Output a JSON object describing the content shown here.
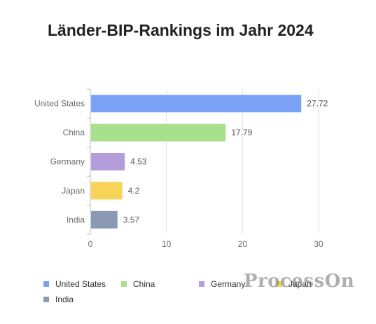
{
  "title": "Länder-BIP-Rankings im Jahr 2024",
  "watermark_text": "ProcessOn",
  "chart_data": {
    "type": "bar",
    "orientation": "horizontal",
    "title": "Länder-BIP-Rankings im Jahr 2024",
    "xlabel": "",
    "ylabel": "",
    "categories": [
      "United States",
      "China",
      "Germany",
      "Japan",
      "India"
    ],
    "values": [
      27.72,
      17.79,
      4.53,
      4.2,
      3.57
    ],
    "data_labels": [
      "27.72",
      "17.79",
      "4.53",
      "4.2",
      "3.57"
    ],
    "colors": [
      "#79a1f5",
      "#a9e08b",
      "#b39ddb",
      "#f7d35a",
      "#8a9ab3"
    ],
    "xlim": [
      0,
      30
    ],
    "x_ticks": [
      0,
      10,
      20,
      30
    ],
    "x_tick_labels": [
      "0",
      "10",
      "20",
      "30"
    ],
    "grid": true,
    "legend_position": "bottom"
  }
}
